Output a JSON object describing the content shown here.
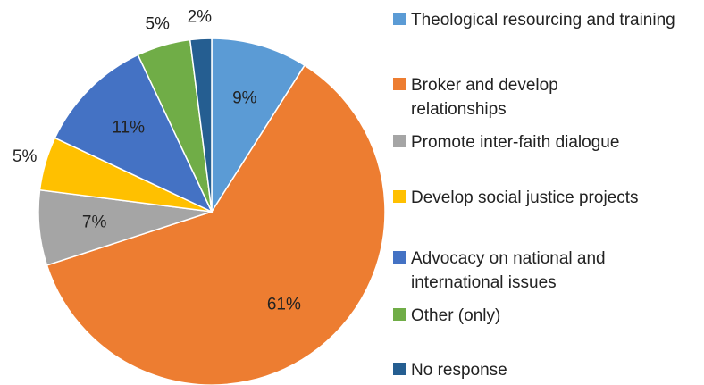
{
  "chart_data": {
    "type": "pie",
    "categories": [
      "Theological resourcing and training",
      "Broker and develop relationships",
      "Promote inter-faith dialogue",
      "Develop social justice projects",
      "Advocacy on national and international issues",
      "Other (only)",
      "No response"
    ],
    "values": [
      9,
      61,
      7,
      5,
      11,
      5,
      2
    ],
    "value_labels": [
      "9%",
      "61%",
      "7%",
      "5%",
      "11%",
      "5%",
      "2%"
    ],
    "colors": [
      "#5b9bd5",
      "#ed7d31",
      "#a5a5a5",
      "#ffc000",
      "#4472c4",
      "#70ad47",
      "#255e91"
    ]
  }
}
